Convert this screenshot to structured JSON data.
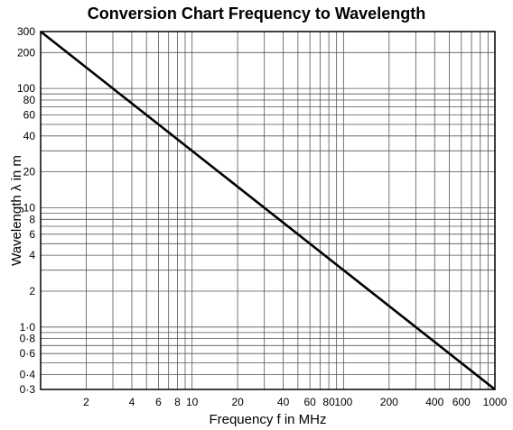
{
  "chart_data": {
    "type": "line",
    "title": "Conversion Chart Frequency to Wavelength",
    "xlabel": "Frequency f in MHz",
    "ylabel": "Wavelength λ in m",
    "xscale": "log",
    "yscale": "log",
    "xlim": [
      1,
      1000
    ],
    "ylim": [
      0.3,
      300
    ],
    "grid": true,
    "x_tick_labels": [
      {
        "value": 2,
        "label": "2"
      },
      {
        "value": 4,
        "label": "4"
      },
      {
        "value": 6,
        "label": "6"
      },
      {
        "value": 8,
        "label": "8"
      },
      {
        "value": 10,
        "label": "10"
      },
      {
        "value": 20,
        "label": "20"
      },
      {
        "value": 40,
        "label": "40"
      },
      {
        "value": 60,
        "label": "60"
      },
      {
        "value": 80,
        "label": "80"
      },
      {
        "value": 100,
        "label": "100"
      },
      {
        "value": 200,
        "label": "200"
      },
      {
        "value": 400,
        "label": "400"
      },
      {
        "value": 600,
        "label": "600"
      },
      {
        "value": 1000,
        "label": "1000"
      }
    ],
    "y_tick_labels": [
      {
        "value": 300,
        "label": "300"
      },
      {
        "value": 200,
        "label": "200"
      },
      {
        "value": 100,
        "label": "100"
      },
      {
        "value": 80,
        "label": "80"
      },
      {
        "value": 60,
        "label": "60"
      },
      {
        "value": 40,
        "label": "40"
      },
      {
        "value": 20,
        "label": "20"
      },
      {
        "value": 10,
        "label": "10"
      },
      {
        "value": 8,
        "label": "8"
      },
      {
        "value": 6,
        "label": "6"
      },
      {
        "value": 4,
        "label": "4"
      },
      {
        "value": 2,
        "label": "2"
      },
      {
        "value": 1,
        "label": "1·0"
      },
      {
        "value": 0.8,
        "label": "0·8"
      },
      {
        "value": 0.6,
        "label": "0·6"
      },
      {
        "value": 0.4,
        "label": "0·4"
      },
      {
        "value": 0.3,
        "label": "0·3"
      }
    ],
    "series": [
      {
        "x": [
          1,
          1000
        ],
        "y": [
          300,
          0.3
        ],
        "color": "#000000"
      }
    ]
  }
}
